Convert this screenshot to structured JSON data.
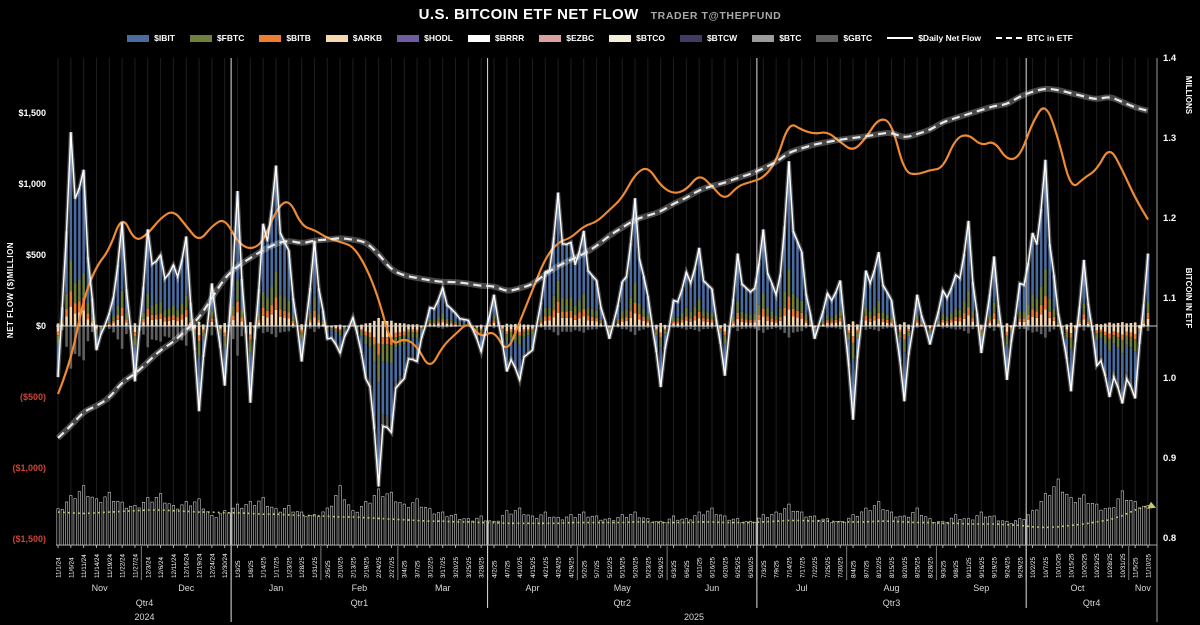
{
  "title": "U.S. BITCOIN ETF NET FLOW",
  "subtitle": "TRADER T@THEPFUND",
  "legend": {
    "items": [
      {
        "label": "$IBIT",
        "type": "swatch",
        "color": "#4a6b9e"
      },
      {
        "label": "$FBTC",
        "type": "swatch",
        "color": "#6f7f3d"
      },
      {
        "label": "$BITB",
        "type": "swatch",
        "color": "#ed7d31"
      },
      {
        "label": "$ARKB",
        "type": "swatch",
        "color": "#f6d7ae"
      },
      {
        "label": "$HODL",
        "type": "swatch",
        "color": "#6f5b9e"
      },
      {
        "label": "$BRRR",
        "type": "swatch",
        "color": "#ffffff"
      },
      {
        "label": "$EZBC",
        "type": "swatch",
        "color": "#d9a1a1"
      },
      {
        "label": "$BTCO",
        "type": "swatch",
        "color": "#f4efda"
      },
      {
        "label": "$BTCW",
        "type": "swatch",
        "color": "#423a63"
      },
      {
        "label": "$BTC",
        "type": "swatch",
        "color": "#9b9b9b"
      },
      {
        "label": "$GBTC",
        "type": "swatch",
        "color": "#5f5f5f"
      },
      {
        "label": "$Daily Net Flow",
        "type": "line",
        "color": "#ffffff"
      },
      {
        "label": "BTC in ETF",
        "type": "dashed",
        "color": "#ffffff"
      }
    ]
  },
  "left_axis": {
    "label": "NET FLOW ($)MILLION",
    "ticks": [
      {
        "label": "$1,500",
        "value": 1500
      },
      {
        "label": "$1,000",
        "value": 1000
      },
      {
        "label": "$500",
        "value": 500
      },
      {
        "label": "$0",
        "value": 0
      },
      {
        "label": "($500)",
        "value": -500
      },
      {
        "label": "($1,000)",
        "value": -1000
      },
      {
        "label": "($1,500)",
        "value": -1500
      }
    ],
    "negative_color": "#cd4434",
    "positive_color": "#ffffff"
  },
  "right_axis": {
    "unit_label": "MILLIONS",
    "label": "BITCOIN IN ETF",
    "ticks": [
      "1.4",
      "1.3",
      "1.2",
      "1.1",
      "1.0",
      "0.9",
      "0.8"
    ],
    "tick_values": [
      1.4,
      1.3,
      1.2,
      1.1,
      1.0,
      0.9,
      0.8
    ]
  },
  "x_axis": {
    "months": [
      {
        "label": "Nov",
        "from": 0,
        "to": 6
      },
      {
        "label": "Dec",
        "from": 7,
        "to": 13
      },
      {
        "label": "Jan",
        "from": 14,
        "to": 20
      },
      {
        "label": "Feb",
        "from": 21,
        "to": 26
      },
      {
        "label": "Mar",
        "from": 27,
        "to": 33
      },
      {
        "label": "Apr",
        "from": 34,
        "to": 40
      },
      {
        "label": "May",
        "from": 41,
        "to": 47
      },
      {
        "label": "Jun",
        "from": 48,
        "to": 54
      },
      {
        "label": "Jul",
        "from": 55,
        "to": 61
      },
      {
        "label": "Aug",
        "from": 62,
        "to": 68
      },
      {
        "label": "Sep",
        "from": 69,
        "to": 75
      },
      {
        "label": "Oct",
        "from": 76,
        "to": 83
      },
      {
        "label": "Nov",
        "from": 84,
        "to": 85
      }
    ],
    "quarters": [
      {
        "label": "Qtr4",
        "from": 0,
        "to": 13
      },
      {
        "label": "Qtr1",
        "from": 14,
        "to": 33
      },
      {
        "label": "Qtr2",
        "from": 34,
        "to": 54
      },
      {
        "label": "Qtr3",
        "from": 55,
        "to": 75
      },
      {
        "label": "Qtr4",
        "from": 76,
        "to": 85
      }
    ],
    "years": [
      {
        "label": "2024",
        "from": 0,
        "to": 13
      },
      {
        "label": "2025",
        "from": 14,
        "to": 85
      }
    ]
  },
  "chart_data": {
    "type": "combo",
    "title": "U.S. BITCOIN ETF NET FLOW",
    "x_labels": [
      "11/1/24",
      "11/6/24",
      "11/11/24",
      "11/14/24",
      "11/19/24",
      "11/22/24",
      "11/27/24",
      "12/3/24",
      "12/6/24",
      "12/11/24",
      "12/16/24",
      "12/19/24",
      "12/24/24",
      "12/30/24",
      "1/3/25",
      "1/8/25",
      "1/14/25",
      "1/17/25",
      "1/23/25",
      "1/28/25",
      "1/31/25",
      "2/5/25",
      "2/10/25",
      "2/13/25",
      "2/19/25",
      "2/24/25",
      "2/27/25",
      "3/4/25",
      "3/7/25",
      "3/12/25",
      "3/17/25",
      "3/20/25",
      "3/25/25",
      "3/28/25",
      "4/2/25",
      "4/7/25",
      "4/10/25",
      "4/15/25",
      "4/21/25",
      "4/24/25",
      "4/29/25",
      "5/2/25",
      "5/7/25",
      "5/12/25",
      "5/15/25",
      "5/20/25",
      "5/23/25",
      "5/29/25",
      "6/3/25",
      "6/6/25",
      "6/11/25",
      "6/16/25",
      "6/20/25",
      "6/25/25",
      "6/30/25",
      "7/3/25",
      "7/9/25",
      "7/14/25",
      "7/17/25",
      "7/22/25",
      "7/25/25",
      "7/30/25",
      "8/4/25",
      "8/7/25",
      "8/12/25",
      "8/15/25",
      "8/20/25",
      "8/25/25",
      "8/28/25",
      "9/3/25",
      "9/8/25",
      "9/11/25",
      "9/16/25",
      "9/19/25",
      "9/24/25",
      "9/29/25",
      "10/2/25",
      "10/7/25",
      "10/10/25",
      "10/15/25",
      "10/20/25",
      "10/23/25",
      "10/28/25",
      "10/31/25",
      "11/5/25",
      "11/10/25"
    ],
    "ylim_left": [
      -1500,
      1500
    ],
    "ylim_right": [
      0.8,
      1.4
    ],
    "grid": "vertical-daily",
    "legend_position": "top",
    "series": [
      {
        "name": "Daily Net Flow",
        "axis": "left",
        "unit": "$ million",
        "style": "white line over stacked bars",
        "values": [
          -360,
          1365,
          1100,
          -170,
          90,
          730,
          -390,
          680,
          500,
          430,
          630,
          -600,
          300,
          -420,
          950,
          -540,
          720,
          1130,
          530,
          -250,
          600,
          -90,
          -190,
          60,
          -370,
          -1130,
          -750,
          -370,
          -250,
          130,
          270,
          90,
          40,
          -180,
          220,
          -320,
          -380,
          -170,
          380,
          940,
          590,
          670,
          320,
          -90,
          310,
          900,
          210,
          -430,
          180,
          380,
          550,
          260,
          -350,
          510,
          240,
          680,
          220,
          1160,
          520,
          -90,
          230,
          320,
          -660,
          390,
          520,
          180,
          -530,
          220,
          -130,
          250,
          360,
          740,
          -190,
          490,
          -380,
          300,
          655,
          1170,
          90,
          -460,
          465,
          -280,
          -500,
          -545,
          -510,
          510
        ]
      },
      {
        "name": "BTC in ETF",
        "axis": "right",
        "unit": "millions of BTC",
        "style": "white dashed line",
        "values": [
          0.925,
          0.94,
          0.958,
          0.965,
          0.975,
          0.995,
          1.005,
          1.02,
          1.035,
          1.045,
          1.06,
          1.075,
          1.1,
          1.125,
          1.14,
          1.15,
          1.16,
          1.168,
          1.172,
          1.168,
          1.172,
          1.173,
          1.175,
          1.173,
          1.17,
          1.155,
          1.135,
          1.128,
          1.125,
          1.122,
          1.12,
          1.12,
          1.118,
          1.115,
          1.115,
          1.108,
          1.112,
          1.117,
          1.13,
          1.14,
          1.148,
          1.155,
          1.165,
          1.178,
          1.188,
          1.198,
          1.203,
          1.208,
          1.218,
          1.225,
          1.235,
          1.24,
          1.244,
          1.25,
          1.255,
          1.262,
          1.27,
          1.282,
          1.287,
          1.292,
          1.295,
          1.298,
          1.3,
          1.302,
          1.305,
          1.307,
          1.3,
          1.305,
          1.31,
          1.32,
          1.325,
          1.33,
          1.335,
          1.34,
          1.342,
          1.352,
          1.358,
          1.362,
          1.36,
          1.356,
          1.352,
          1.348,
          1.352,
          1.345,
          1.338,
          1.334
        ]
      },
      {
        "name": "orange line (unlabeled in legend)",
        "axis": "right-equivalent",
        "unit": "plotted against right-axis pixel scale",
        "style": "solid orange line",
        "color": "#ed8a33",
        "values": [
          0.98,
          1.02,
          1.1,
          1.14,
          1.16,
          1.205,
          1.17,
          1.18,
          1.2,
          1.21,
          1.19,
          1.17,
          1.19,
          1.2,
          1.17,
          1.16,
          1.17,
          1.21,
          1.225,
          1.19,
          1.185,
          1.175,
          1.17,
          1.165,
          1.14,
          1.1,
          1.04,
          1.05,
          1.04,
          1.01,
          1.04,
          1.055,
          1.07,
          1.05,
          1.06,
          1.03,
          1.07,
          1.11,
          1.15,
          1.17,
          1.175,
          1.19,
          1.195,
          1.21,
          1.225,
          1.255,
          1.265,
          1.24,
          1.23,
          1.235,
          1.255,
          1.24,
          1.222,
          1.24,
          1.245,
          1.25,
          1.27,
          1.32,
          1.31,
          1.305,
          1.308,
          1.295,
          1.283,
          1.3,
          1.325,
          1.32,
          1.257,
          1.254,
          1.26,
          1.262,
          1.3,
          1.305,
          1.29,
          1.297,
          1.272,
          1.276,
          1.32,
          1.345,
          1.3,
          1.235,
          1.25,
          1.26,
          1.29,
          1.26,
          1.225,
          1.198
        ]
      }
    ],
    "stacked_bars": {
      "note": "Daily bars are stacked by ETF; individual ETF values are not labeled on the chart. Stack order from the zero line outward (estimated from pixels):",
      "stack_order_from_zero": [
        "$ARKB",
        "$BITB",
        "$FBTC",
        "$IBIT",
        "$HODL",
        "$BRRR",
        "$EZBC",
        "$BTCO",
        "$BTCW",
        "$BTC",
        "$GBTC"
      ],
      "composition_approx_render_hint": {
        "ibit": 0.66,
        "fbtc": 0.16,
        "bitb": 0.08,
        "arkb": 0.1
      }
    },
    "bottom_panel": {
      "note": "small hollow white-outlined bars with a yellow dotted line ending in a small triangle marker; no axis values shown (relative heights estimated from pixels, 0-1)",
      "bar_heights_rel": [
        0.55,
        0.75,
        0.9,
        0.7,
        0.8,
        0.65,
        0.6,
        0.72,
        0.78,
        0.6,
        0.66,
        0.7,
        0.45,
        0.52,
        0.62,
        0.66,
        0.72,
        0.55,
        0.6,
        0.5,
        0.46,
        0.56,
        0.9,
        0.52,
        0.66,
        0.85,
        0.8,
        0.62,
        0.7,
        0.55,
        0.5,
        0.46,
        0.4,
        0.44,
        0.36,
        0.52,
        0.56,
        0.44,
        0.5,
        0.42,
        0.46,
        0.5,
        0.44,
        0.4,
        0.46,
        0.5,
        0.4,
        0.36,
        0.44,
        0.4,
        0.5,
        0.56,
        0.44,
        0.4,
        0.36,
        0.46,
        0.5,
        0.62,
        0.5,
        0.44,
        0.4,
        0.36,
        0.46,
        0.56,
        0.66,
        0.5,
        0.44,
        0.56,
        0.4,
        0.36,
        0.46,
        0.4,
        0.5,
        0.44,
        0.36,
        0.4,
        0.52,
        0.78,
        1.0,
        0.72,
        0.76,
        0.62,
        0.56,
        0.82,
        0.66,
        0.6
      ],
      "dotted_line_rel": [
        0.47,
        0.46,
        0.45,
        0.46,
        0.47,
        0.48,
        0.49,
        0.5,
        0.5,
        0.49,
        0.48,
        0.47,
        0.47,
        0.46,
        0.46,
        0.45,
        0.44,
        0.44,
        0.43,
        0.42,
        0.42,
        0.41,
        0.4,
        0.4,
        0.39,
        0.38,
        0.37,
        0.36,
        0.35,
        0.34,
        0.34,
        0.33,
        0.33,
        0.32,
        0.32,
        0.31,
        0.31,
        0.31,
        0.31,
        0.31,
        0.32,
        0.32,
        0.32,
        0.32,
        0.32,
        0.33,
        0.33,
        0.32,
        0.32,
        0.32,
        0.33,
        0.33,
        0.32,
        0.32,
        0.32,
        0.33,
        0.34,
        0.35,
        0.35,
        0.34,
        0.34,
        0.33,
        0.33,
        0.33,
        0.34,
        0.34,
        0.33,
        0.32,
        0.32,
        0.31,
        0.31,
        0.3,
        0.3,
        0.3,
        0.29,
        0.28,
        0.26,
        0.25,
        0.26,
        0.28,
        0.3,
        0.33,
        0.36,
        0.42,
        0.5,
        0.56
      ],
      "dotted_color": "#c9c96e"
    },
    "colors": {
      "ibit": "#4a6b9e",
      "fbtc": "#6f7f3d",
      "bitb": "#ed7d31",
      "arkb": "#f6d7ae",
      "hodl": "#6f5b9e",
      "brrr": "#ffffff",
      "ezbc": "#d9a1a1",
      "btco": "#f4efda",
      "btcw": "#423a63",
      "btc": "#9b9b9b",
      "gbtc": "#5f5f5f",
      "netflow_line": "#ffffff",
      "btc_in_etf_line": "#e9e9e9",
      "orange_line": "#ed8a33",
      "zero_line": "#c9d4e4",
      "background": "#000000",
      "gridline": "#1e1e1e",
      "quarter_line": "#e0e0e0"
    }
  }
}
